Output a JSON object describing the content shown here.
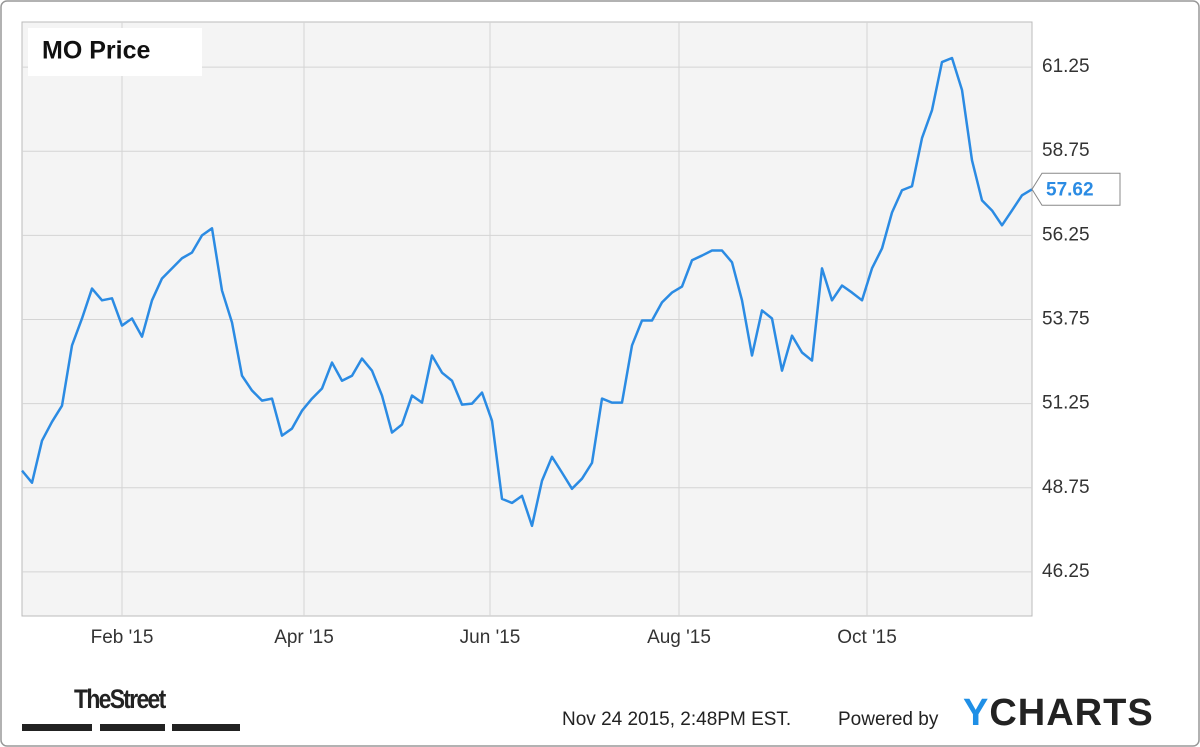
{
  "chart_data": {
    "type": "line",
    "title": "MO Price",
    "xlim": [
      0,
      101
    ],
    "xticks": [
      {
        "value": 10,
        "label": "Feb '15"
      },
      {
        "value": 28.2,
        "label": "Apr '15"
      },
      {
        "value": 46.8,
        "label": "Jun '15"
      },
      {
        "value": 65.7,
        "label": "Aug '15"
      },
      {
        "value": 84.5,
        "label": "Oct '15"
      }
    ],
    "ylim": [
      44.94,
      62.59
    ],
    "yticks": [
      46.25,
      48.75,
      51.25,
      53.75,
      56.25,
      58.75,
      61.25
    ],
    "grid": true,
    "series": [
      {
        "name": "MO",
        "color": "#2b8be3",
        "values": [
          49.26,
          48.9,
          50.15,
          50.71,
          51.19,
          52.98,
          53.78,
          54.67,
          54.32,
          54.38,
          53.57,
          53.78,
          53.24,
          54.32,
          54.97,
          55.27,
          55.57,
          55.74,
          56.25,
          56.46,
          54.61,
          53.66,
          52.08,
          51.64,
          51.34,
          51.4,
          50.3,
          50.51,
          51.04,
          51.4,
          51.7,
          52.47,
          51.93,
          52.08,
          52.59,
          52.23,
          51.49,
          50.39,
          50.63,
          51.49,
          51.28,
          52.68,
          52.17,
          51.93,
          51.22,
          51.25,
          51.58,
          50.74,
          48.42,
          48.3,
          48.51,
          47.62,
          48.96,
          49.67,
          49.2,
          48.72,
          49.02,
          49.49,
          51.4,
          51.28,
          51.28,
          52.98,
          53.72,
          53.72,
          54.26,
          54.55,
          54.73,
          55.51,
          55.65,
          55.8,
          55.8,
          55.45,
          54.32,
          52.68,
          54.02,
          53.78,
          52.23,
          53.27,
          52.77,
          52.53,
          55.27,
          54.32,
          54.76,
          54.55,
          54.32,
          55.27,
          55.86,
          56.93,
          57.59,
          57.71,
          59.14,
          59.97,
          61.4,
          61.52,
          60.57,
          58.48,
          57.29,
          56.99,
          56.55,
          56.99,
          57.44,
          57.62
        ]
      }
    ],
    "source_note": "Nov 24 2015, 2:48PM EST.",
    "powered_by": "Powered by",
    "brand": "YCHARTS",
    "publisher": "TheStreet"
  }
}
